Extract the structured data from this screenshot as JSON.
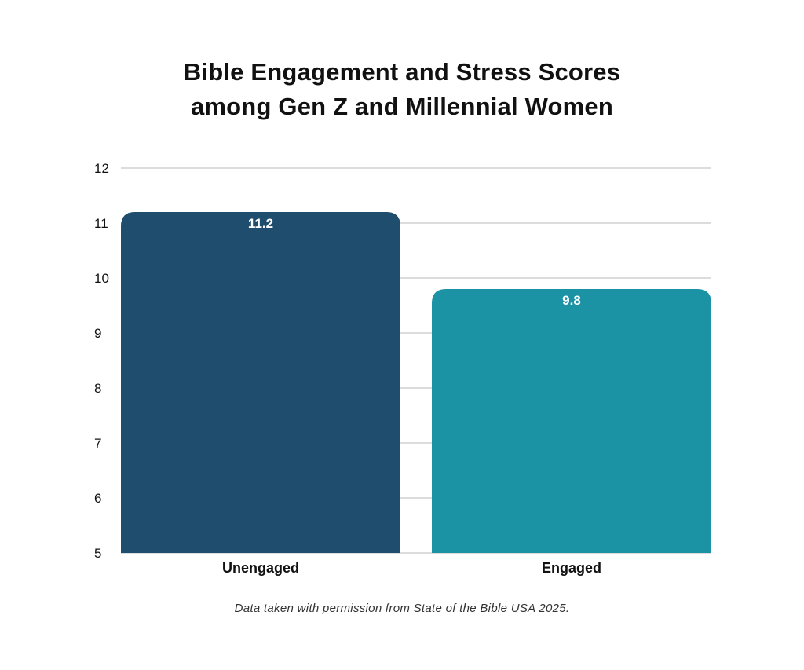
{
  "chart_data": {
    "type": "bar",
    "title_lines": [
      "Bible Engagement and Stress Scores",
      "among Gen Z and Millennial Women"
    ],
    "categories": [
      "Unengaged",
      "Engaged"
    ],
    "values": [
      11.2,
      9.8
    ],
    "value_labels": [
      "11.2",
      "9.8"
    ],
    "colors": [
      "#1e4d6d",
      "#1c93a5"
    ],
    "ylim": [
      5,
      12
    ],
    "yticks": [
      5,
      6,
      7,
      8,
      9,
      10,
      11,
      12
    ],
    "grid": true,
    "gridline_color": "#c8c8c8",
    "source_note": "Data taken with permission from State of the Bible USA 2025."
  }
}
